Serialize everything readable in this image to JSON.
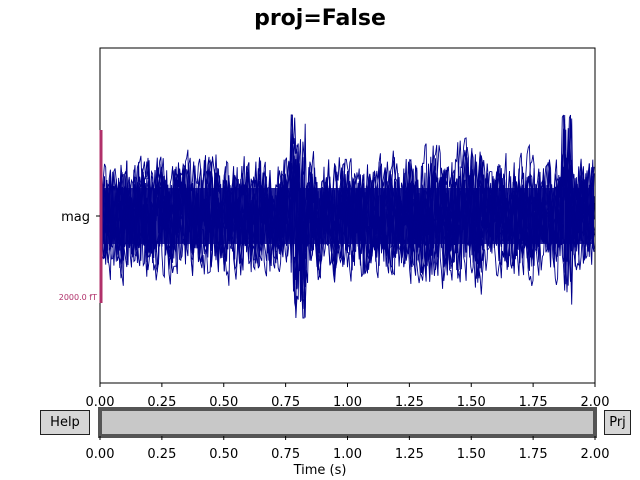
{
  "figure": {
    "title": "proj=False",
    "channel_label": "mag",
    "scale_bar_label": "2000.0 fT",
    "trace_color": "#00008B",
    "scale_bar_color": "#B0306A",
    "xlabel": "Time (s)"
  },
  "buttons": {
    "help": "Help",
    "proj": "Prj"
  },
  "chart_data": [
    {
      "type": "line",
      "title": "proj=False",
      "xlabel": "",
      "ylabel": "",
      "xlim": [
        0,
        2.0
      ],
      "x_ticks": [
        "0.00",
        "0.25",
        "0.50",
        "0.75",
        "1.00",
        "1.25",
        "1.50",
        "1.75",
        "2.00"
      ],
      "y_ticks": [
        "mag"
      ],
      "series": [
        {
          "values": []
        }
      ],
      "grid": false
    },
    {
      "type": "bar",
      "title": "",
      "xlabel": "Time (s)",
      "xlim": [
        0,
        2.0
      ],
      "x_ticks": [
        "0.00",
        "0.25",
        "0.50",
        "0.75",
        "1.00",
        "1.25",
        "1.50",
        "1.75",
        "2.00"
      ],
      "view_window": [
        0,
        2.0
      ]
    }
  ]
}
